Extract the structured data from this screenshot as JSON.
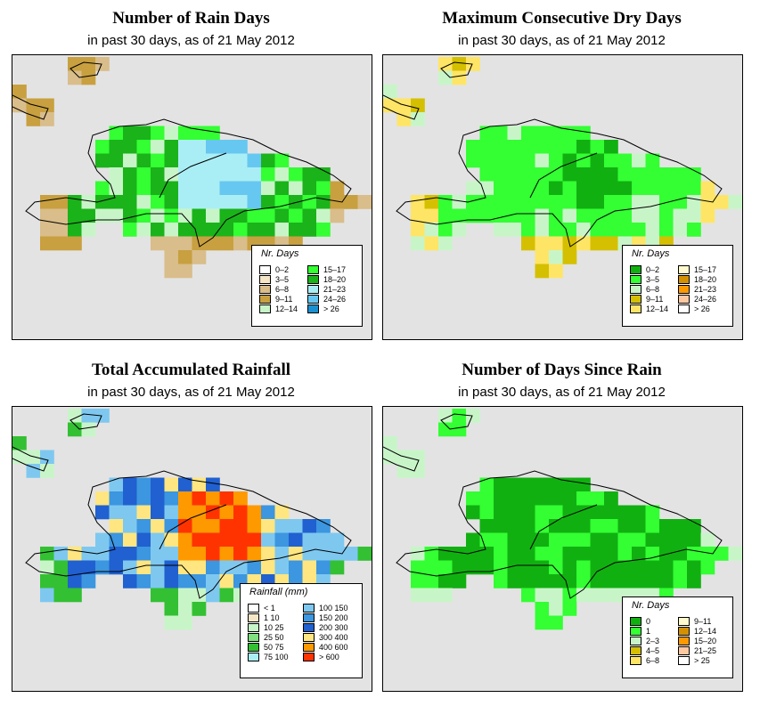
{
  "panels": [
    {
      "title": "Number of Rain Days",
      "subtitle": "in past 30 days, as of  21 May 2012",
      "legend": {
        "title": "Nr. Days",
        "items": [
          {
            "label": "0–2",
            "color": "#ffffff"
          },
          {
            "label": "3–5",
            "color": "#f5e6c8"
          },
          {
            "label": "6–8",
            "color": "#d9bd8a"
          },
          {
            "label": "9–11",
            "color": "#c8a040"
          },
          {
            "label": "12–14",
            "color": "#c8f5c8"
          },
          {
            "label": "15–17",
            "color": "#33ff33"
          },
          {
            "label": "18–20",
            "color": "#1ab31a"
          },
          {
            "label": "21–23",
            "color": "#aaeef5"
          },
          {
            "label": "24–26",
            "color": "#66c8f0"
          },
          {
            "label": "> 26",
            "color": "#1a90d0"
          }
        ]
      }
    },
    {
      "title": "Maximum Consecutive Dry Days",
      "subtitle": "in past 30 days, as of  21 May 2012",
      "legend": {
        "title": "Nr. Days",
        "items": [
          {
            "label": "0–2",
            "color": "#11b011"
          },
          {
            "label": "3–5",
            "color": "#33ff33"
          },
          {
            "label": "6–8",
            "color": "#c8f5c8"
          },
          {
            "label": "9–11",
            "color": "#d4c000"
          },
          {
            "label": "12–14",
            "color": "#ffe566"
          },
          {
            "label": "15–17",
            "color": "#fffacd"
          },
          {
            "label": "18–20",
            "color": "#d49000"
          },
          {
            "label": "21–23",
            "color": "#ff9900"
          },
          {
            "label": "24–26",
            "color": "#ffc8a0"
          },
          {
            "label": "> 26",
            "color": "#ffffff"
          }
        ]
      }
    },
    {
      "title": "Total Accumulated Rainfall",
      "subtitle": "in past 30 days, as of  21 May 2012",
      "legend": {
        "title": "Rainfall (mm)",
        "items": [
          {
            "label": "< 1",
            "color": "#ffffff"
          },
          {
            "label": "1   10",
            "color": "#f5e6c8"
          },
          {
            "label": "10   25",
            "color": "#c8f5c8"
          },
          {
            "label": "25   50",
            "color": "#80e080"
          },
          {
            "label": "50   75",
            "color": "#33c033"
          },
          {
            "label": "75   100",
            "color": "#aaeef5"
          },
          {
            "label": "100   150",
            "color": "#7ec8f0"
          },
          {
            "label": "150   200",
            "color": "#3c96e0"
          },
          {
            "label": "200   300",
            "color": "#2060d0"
          },
          {
            "label": "300   400",
            "color": "#ffe680"
          },
          {
            "label": "400   600",
            "color": "#ff9900"
          },
          {
            "label": "> 600",
            "color": "#ff3300"
          }
        ]
      }
    },
    {
      "title": "Number of Days Since Rain",
      "subtitle": "in past 30 days, as of  21 May 2012",
      "legend": {
        "title": "Nr. Days",
        "items": [
          {
            "label": "0",
            "color": "#11b011"
          },
          {
            "label": "1",
            "color": "#33ff33"
          },
          {
            "label": "2–3",
            "color": "#c8f5c8"
          },
          {
            "label": "4–5",
            "color": "#d4c000"
          },
          {
            "label": "6–8",
            "color": "#ffe566"
          },
          {
            "label": "9–11",
            "color": "#fffacd"
          },
          {
            "label": "12–14",
            "color": "#d49000"
          },
          {
            "label": "15–20",
            "color": "#ff9900"
          },
          {
            "label": "21–25",
            "color": "#ffc8a0"
          },
          {
            "label": "> 25",
            "color": "#ffffff"
          }
        ]
      }
    }
  ]
}
